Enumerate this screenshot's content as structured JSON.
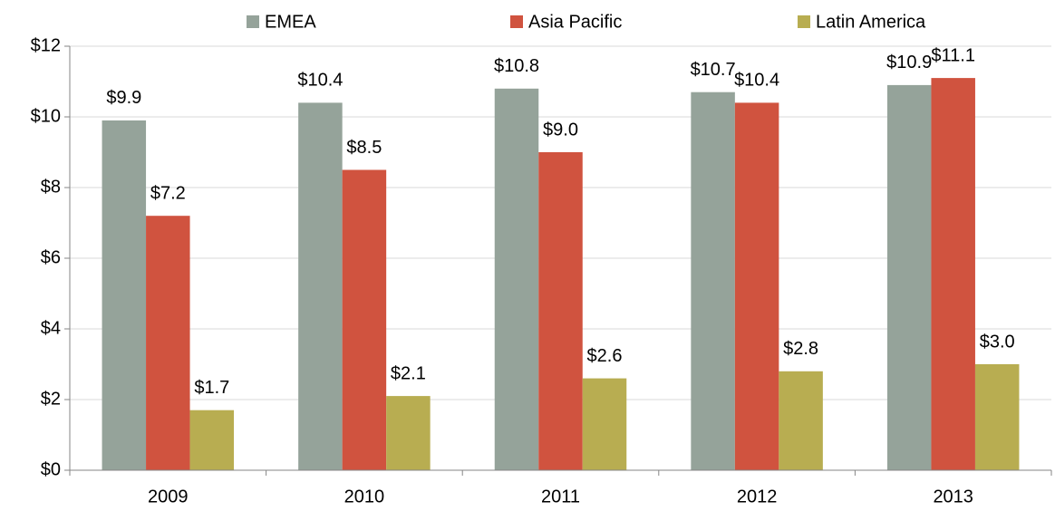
{
  "chart_data": {
    "type": "bar",
    "categories": [
      "2009",
      "2010",
      "2011",
      "2012",
      "2013"
    ],
    "series": [
      {
        "name": "EMEA",
        "color": "#95a39a",
        "values": [
          9.9,
          10.4,
          10.8,
          10.7,
          10.9
        ],
        "value_labels": [
          "$9.9",
          "$10.4",
          "$10.8",
          "$10.7",
          "$10.9"
        ]
      },
      {
        "name": "Asia Pacific",
        "color": "#d0533f",
        "values": [
          7.2,
          8.5,
          9.0,
          10.4,
          11.1
        ],
        "value_labels": [
          "$7.2",
          "$8.5",
          "$9.0",
          "$10.4",
          "$11.1"
        ]
      },
      {
        "name": "Latin America",
        "color": "#b8ad51",
        "values": [
          1.7,
          2.1,
          2.6,
          2.8,
          3.0
        ],
        "value_labels": [
          "$1.7",
          "$2.1",
          "$2.6",
          "$2.8",
          "$3.0"
        ]
      }
    ],
    "ylim": [
      0,
      12
    ],
    "yticks": [
      {
        "value": 0,
        "label": "$0"
      },
      {
        "value": 2,
        "label": "$2"
      },
      {
        "value": 4,
        "label": "$4"
      },
      {
        "value": 6,
        "label": "$6"
      },
      {
        "value": 8,
        "label": "$8"
      },
      {
        "value": 10,
        "label": "$10"
      },
      {
        "value": 12,
        "label": "$12"
      }
    ],
    "grid": true,
    "legend": "top"
  }
}
